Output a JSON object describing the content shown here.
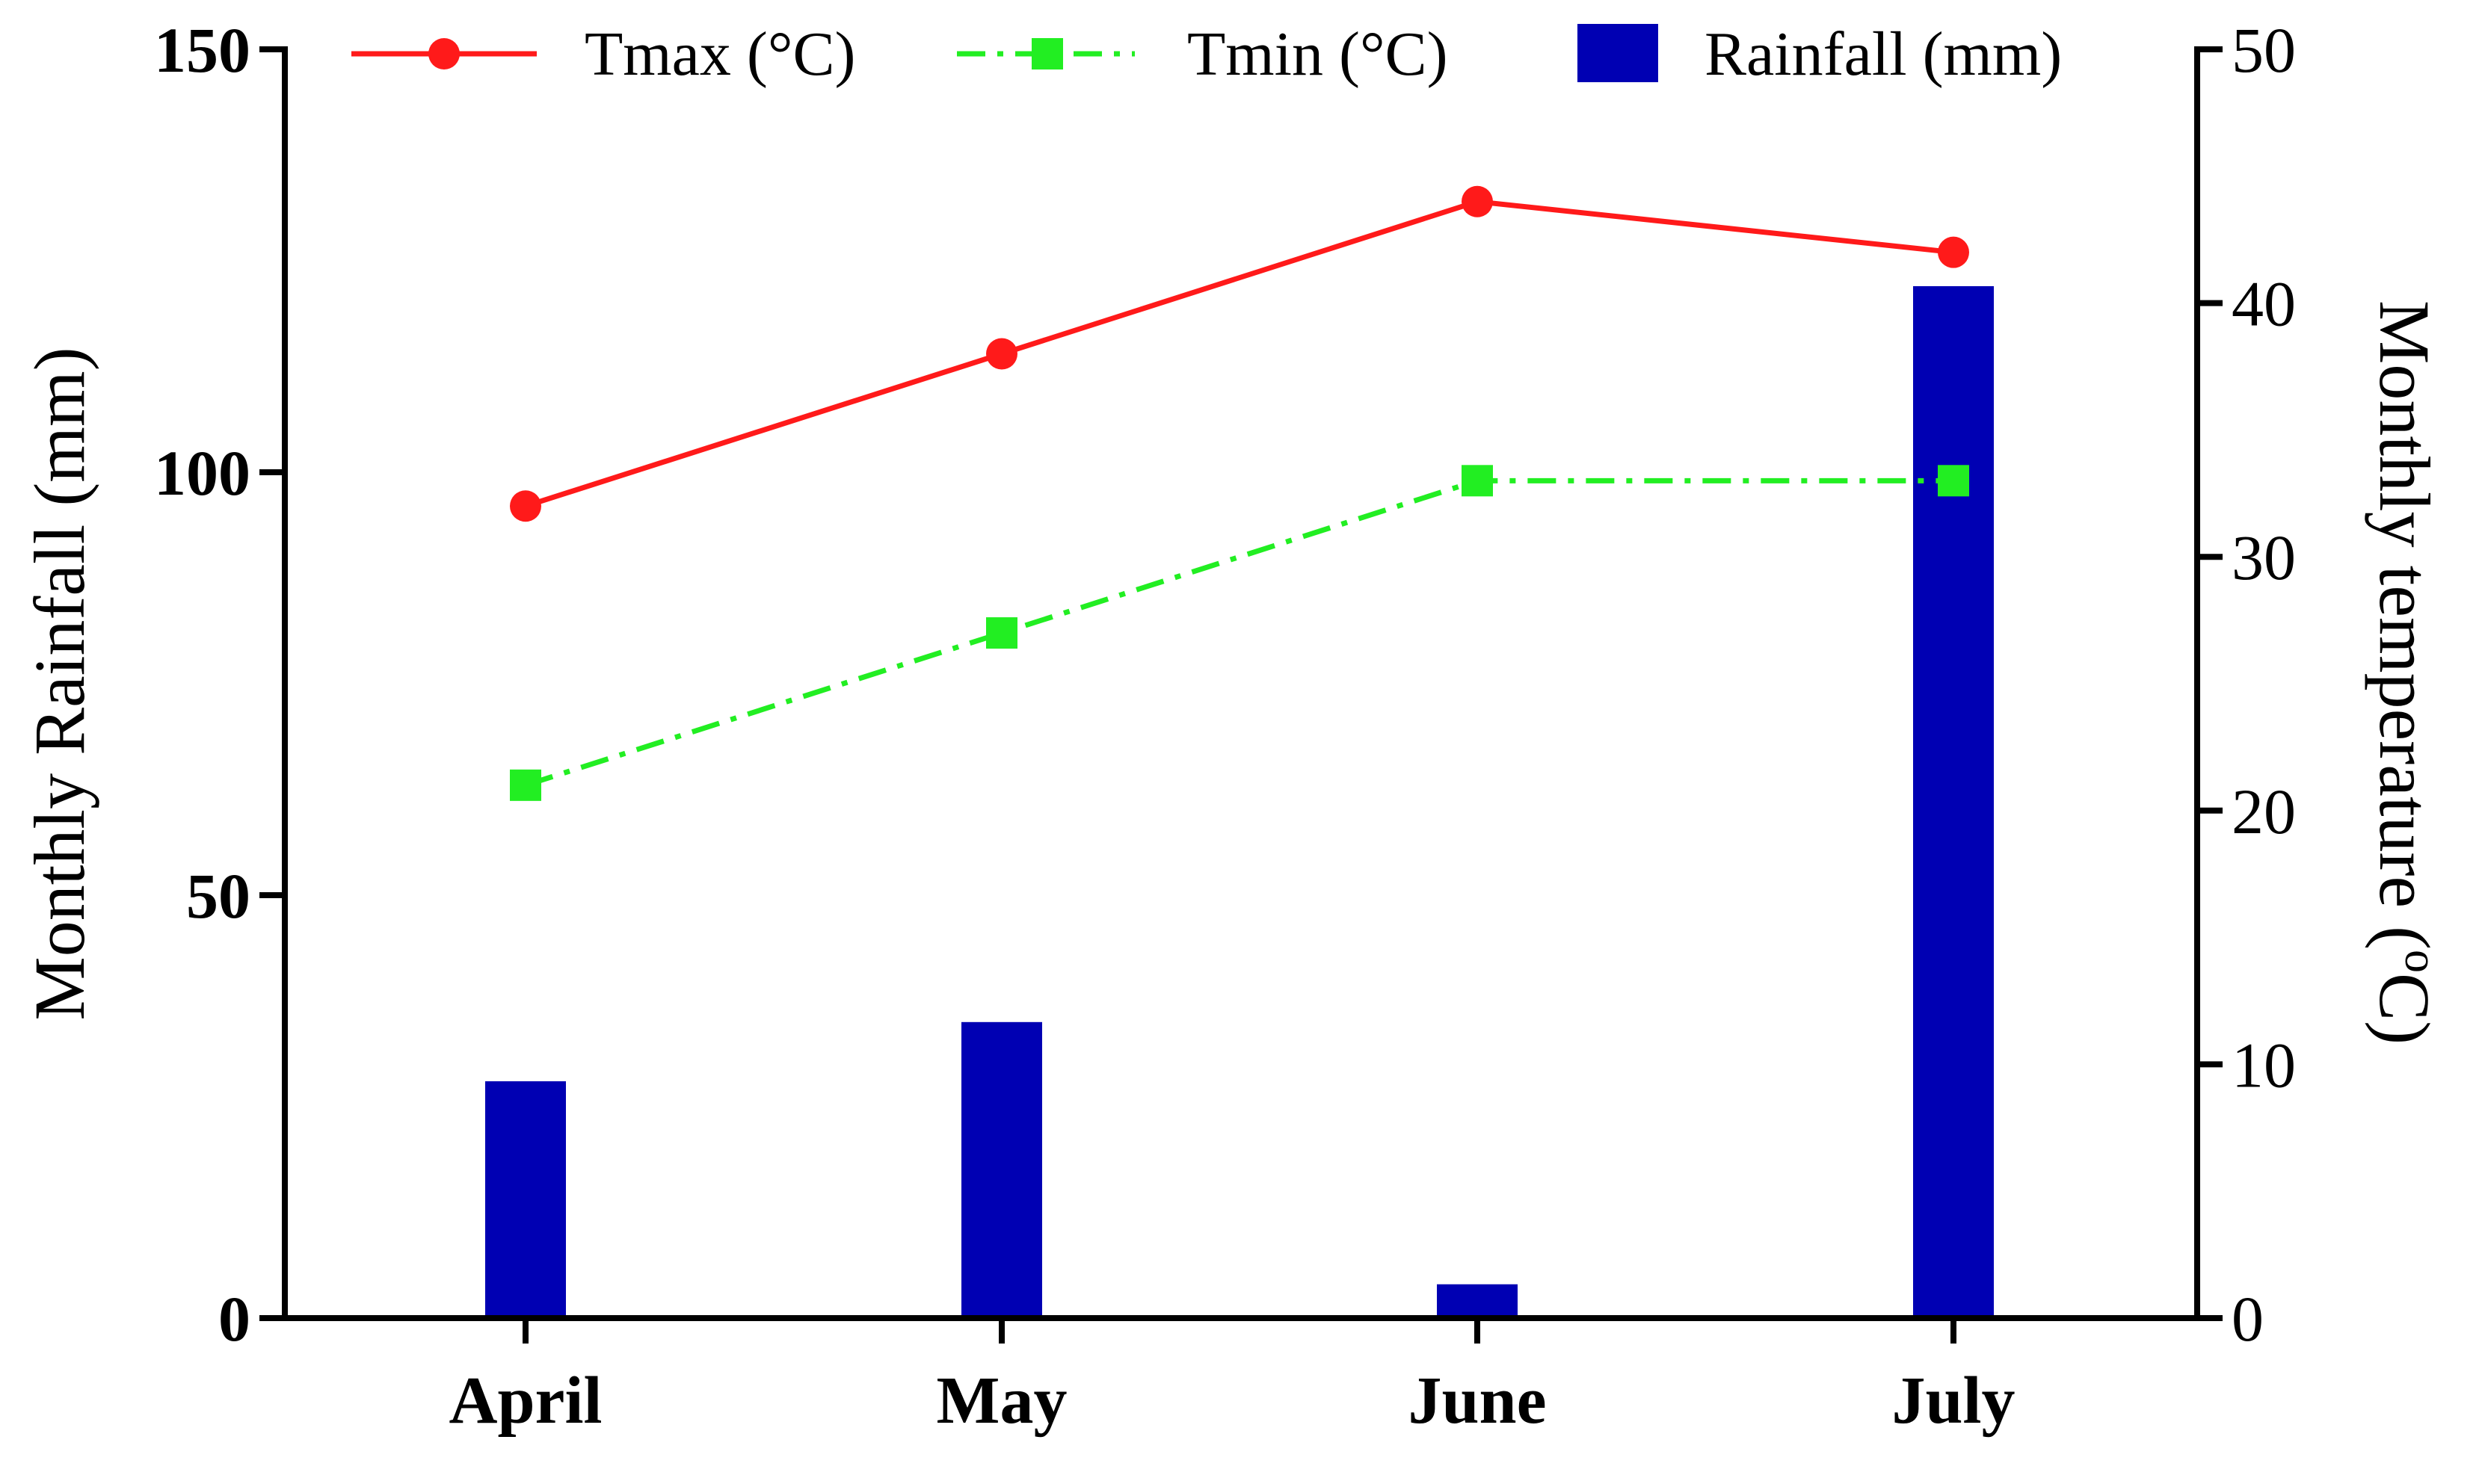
{
  "chart_data": {
    "type": "bar+line",
    "categories": [
      "April",
      "May",
      "June",
      "July"
    ],
    "bar_series": {
      "name": "Rainfall (mm)",
      "values": [
        28,
        35,
        4,
        122
      ],
      "axis": "left",
      "color": "#0000b3"
    },
    "line_series": [
      {
        "name": "Tmax (°C)",
        "values": [
          32,
          38,
          44,
          42
        ],
        "axis": "right",
        "color": "#ff1a1a",
        "marker": "circle",
        "line_style": "solid"
      },
      {
        "name": "Tmin (°C)",
        "values": [
          21,
          27,
          33,
          33
        ],
        "axis": "right",
        "color": "#22ee22",
        "marker": "square",
        "line_style": "dash-dot"
      }
    ],
    "left_axis": {
      "label": "Monthly Rainfall (mm)",
      "ylim": [
        0,
        150
      ],
      "ticks": [
        "0",
        "50",
        "100",
        "150"
      ]
    },
    "right_axis": {
      "label_main": "Monthly temperature (",
      "label_sup": "o",
      "label_end": "C)",
      "ylim": [
        0,
        50
      ],
      "ticks": [
        "0",
        "10",
        "20",
        "30",
        "40",
        "50"
      ]
    },
    "legend_position": "top"
  }
}
